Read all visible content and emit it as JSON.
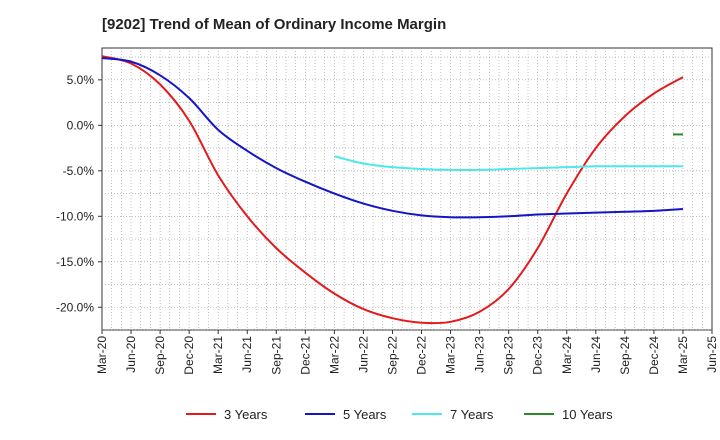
{
  "chart_data": {
    "type": "line",
    "title": "[9202]  Trend of Mean of Ordinary Income Margin",
    "xlabel": "",
    "ylabel": "",
    "x": [
      "Mar-20",
      "Jun-20",
      "Sep-20",
      "Dec-20",
      "Mar-21",
      "Jun-21",
      "Sep-21",
      "Dec-21",
      "Mar-22",
      "Jun-22",
      "Sep-22",
      "Dec-22",
      "Mar-23",
      "Jun-23",
      "Sep-23",
      "Dec-23",
      "Mar-24",
      "Jun-24",
      "Sep-24",
      "Dec-24",
      "Mar-25",
      "Jun-25"
    ],
    "x_tick_labels": [
      "Mar-20",
      "Jun-20",
      "Sep-20",
      "Dec-20",
      "Mar-21",
      "Jun-21",
      "Sep-21",
      "Dec-21",
      "Mar-22",
      "Jun-22",
      "Sep-22",
      "Dec-22",
      "Mar-23",
      "Jun-23",
      "Sep-23",
      "Dec-23",
      "Mar-24",
      "Jun-24",
      "Sep-24",
      "Dec-24",
      "Mar-25",
      "Jun-25"
    ],
    "ylim": [
      -22.5,
      8.5
    ],
    "y_ticks": [
      5,
      0,
      -5,
      -10,
      -15,
      -20
    ],
    "y_tick_labels": [
      "5.0%",
      "0.0%",
      "-5.0%",
      "-10.0%",
      "-15.0%",
      "-20.0%"
    ],
    "grid": true,
    "legend_position": "bottom",
    "series": [
      {
        "name": "3 Years",
        "color": "#e31a1c",
        "values": [
          7.6,
          6.8,
          4.5,
          0.5,
          -5.5,
          -10.0,
          -13.5,
          -16.2,
          -18.5,
          -20.2,
          -21.2,
          -21.7,
          -21.6,
          -20.5,
          -18.0,
          -13.5,
          -7.5,
          -2.5,
          1.0,
          3.5,
          5.3,
          null
        ]
      },
      {
        "name": "5 Years",
        "color": "#1515c8",
        "values": [
          7.4,
          7.0,
          5.5,
          3.0,
          -0.5,
          -2.8,
          -4.7,
          -6.2,
          -7.5,
          -8.6,
          -9.4,
          -9.9,
          -10.1,
          -10.1,
          -10.0,
          -9.8,
          -9.7,
          -9.6,
          -9.5,
          -9.4,
          -9.2,
          null
        ]
      },
      {
        "name": "7 Years",
        "color": "#4fe8e8",
        "values": [
          null,
          null,
          null,
          null,
          null,
          null,
          null,
          null,
          -3.4,
          -4.2,
          -4.6,
          -4.8,
          -4.9,
          -4.9,
          -4.8,
          -4.7,
          -4.6,
          -4.5,
          -4.5,
          -4.5,
          -4.5,
          null
        ]
      },
      {
        "name": "10 Years",
        "color": "#2a8a2a",
        "values": [
          null,
          null,
          null,
          null,
          null,
          null,
          null,
          null,
          null,
          null,
          null,
          null,
          null,
          null,
          null,
          null,
          null,
          null,
          null,
          null,
          -1.0,
          null
        ]
      }
    ]
  }
}
